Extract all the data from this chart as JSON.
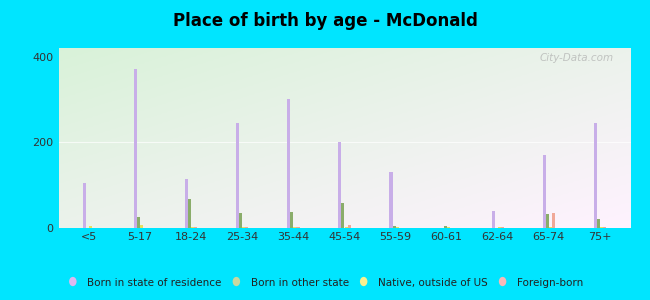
{
  "title": "Place of birth by age - McDonald",
  "categories": [
    "<5",
    "5-17",
    "18-24",
    "25-34",
    "35-44",
    "45-54",
    "55-59",
    "60-61",
    "62-64",
    "65-74",
    "75+"
  ],
  "series": {
    "Born in state of residence": {
      "color": "#c8aee8",
      "values": [
        105,
        370,
        115,
        245,
        300,
        200,
        130,
        0,
        40,
        170,
        245
      ]
    },
    "Born in other state": {
      "color": "#8aad6a",
      "values": [
        0,
        25,
        68,
        35,
        38,
        58,
        5,
        5,
        0,
        32,
        20
      ]
    },
    "Native, outside of US": {
      "color": "#e8e060",
      "values": [
        5,
        8,
        3,
        3,
        3,
        3,
        3,
        3,
        3,
        3,
        3
      ]
    },
    "Foreign-born": {
      "color": "#f0a898",
      "values": [
        0,
        0,
        3,
        3,
        3,
        8,
        0,
        0,
        3,
        35,
        3
      ]
    }
  },
  "legend_colors": {
    "Born in state of residence": "#ddb8f0",
    "Born in other state": "#c8d8a0",
    "Native, outside of US": "#f8f090",
    "Foreign-born": "#f8b8b8"
  },
  "ylim": [
    0,
    420
  ],
  "yticks": [
    0,
    200,
    400
  ],
  "bar_width": 0.06,
  "figure_bg": "#00e5ff",
  "watermark": "City-Data.com"
}
